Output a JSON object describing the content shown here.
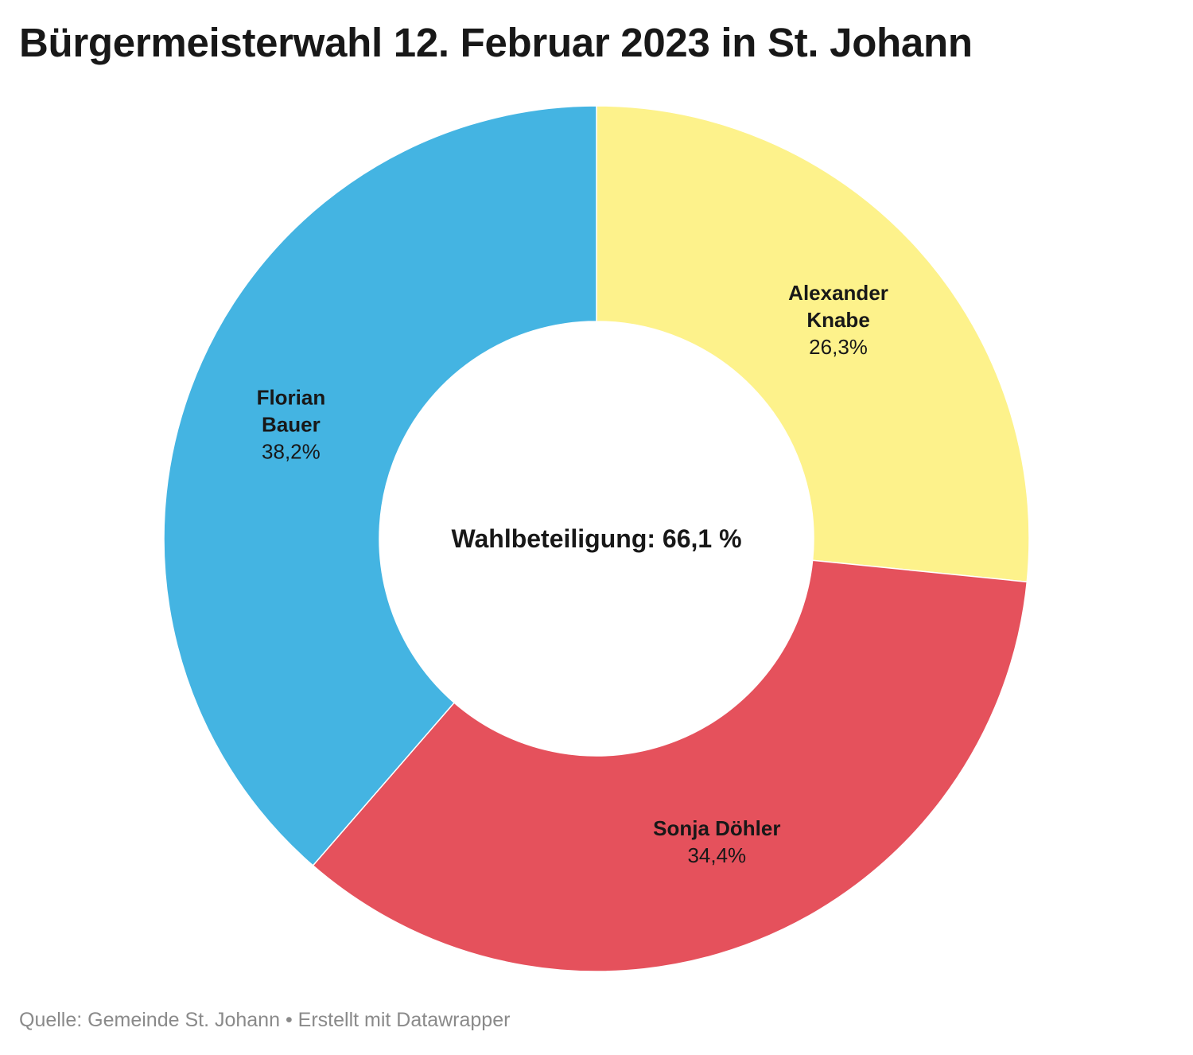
{
  "title": "Bürgermeisterwahl 12. Februar 2023 in St. Johann",
  "footer": {
    "source_prefix": "Quelle:",
    "source": "Gemeinde St. Johann",
    "separator": "•",
    "credit": "Erstellt mit Datawrapper"
  },
  "chart_data": {
    "type": "pie",
    "variant": "donut",
    "title": "Bürgermeisterwahl 12. Februar 2023 in St. Johann",
    "center_label": "Wahlbeteiligung: 66,1 %",
    "unit": "%",
    "start": "top, clockwise",
    "slices": [
      {
        "name_lines": [
          "Alexander",
          "Knabe"
        ],
        "value": 26.3,
        "label": "26,3%",
        "color": "#fdf28b"
      },
      {
        "name_lines": [
          "Sonja Döhler"
        ],
        "value": 34.4,
        "label": "34,4%",
        "color": "#e5515c"
      },
      {
        "name_lines": [
          "Florian",
          "Bauer"
        ],
        "value": 38.2,
        "label": "38,2%",
        "color": "#44b4e2"
      }
    ]
  }
}
